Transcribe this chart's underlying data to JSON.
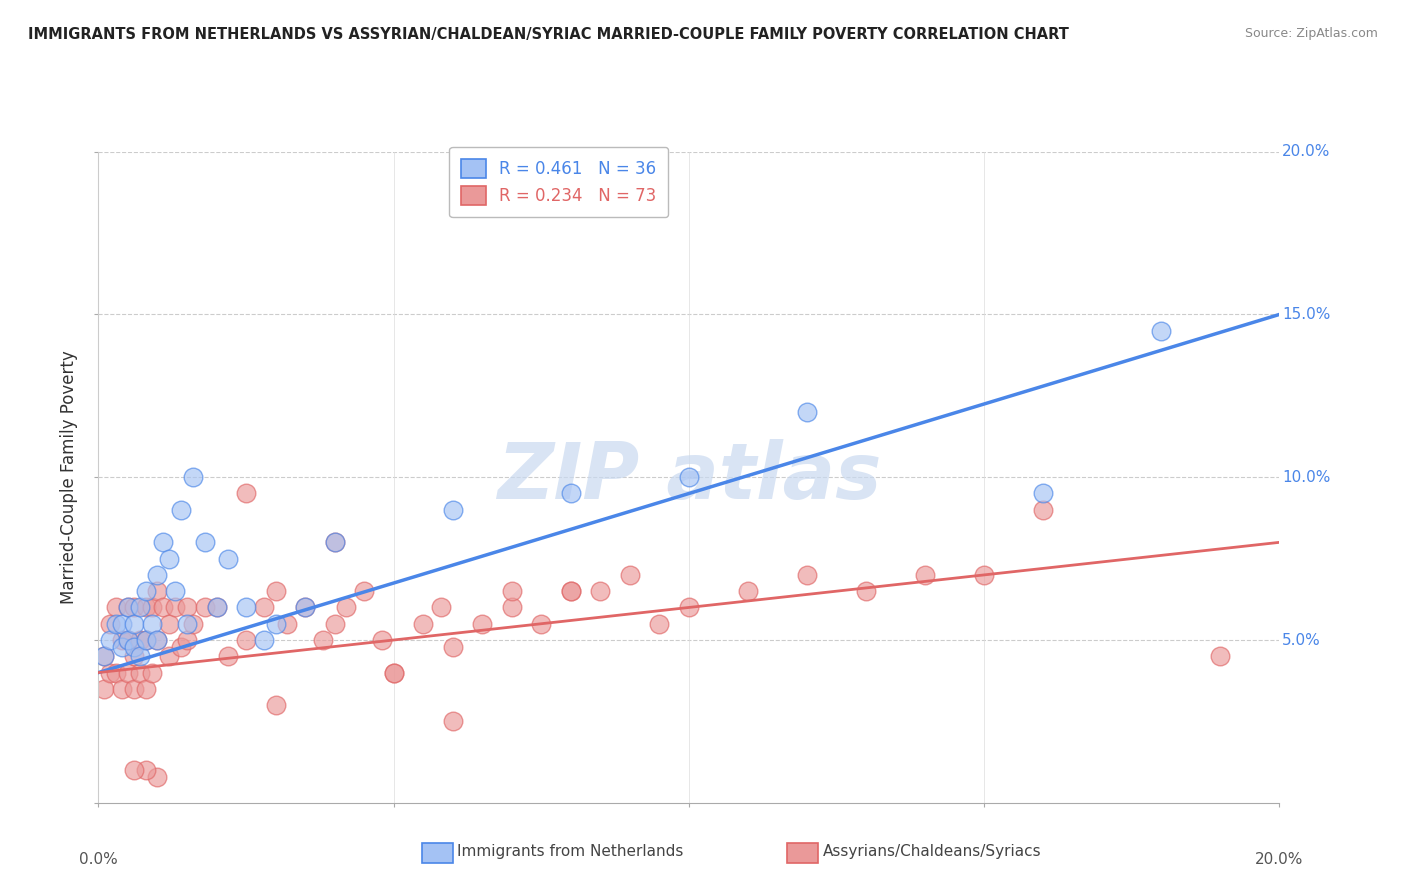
{
  "title": "IMMIGRANTS FROM NETHERLANDS VS ASSYRIAN/CHALDEAN/SYRIAC MARRIED-COUPLE FAMILY POVERTY CORRELATION CHART",
  "source": "Source: ZipAtlas.com",
  "ylabel": "Married-Couple Family Poverty",
  "xlim": [
    0.0,
    0.2
  ],
  "ylim": [
    0.0,
    0.2
  ],
  "blue_line_start_y": 0.04,
  "blue_line_end_y": 0.15,
  "pink_line_start_y": 0.04,
  "pink_line_end_y": 0.08,
  "legend_blue_label": "R = 0.461   N = 36",
  "legend_pink_label": "R = 0.234   N = 73",
  "legend_label_blue": "Immigrants from Netherlands",
  "legend_label_pink": "Assyrians/Chaldeans/Syriacs",
  "blue_fill_color": "#a4c2f4",
  "pink_fill_color": "#ea9999",
  "blue_edge_color": "#4a86e8",
  "pink_edge_color": "#e06666",
  "blue_line_color": "#4a86e8",
  "pink_line_color": "#e06666",
  "watermark_color": "#c9d9f0",
  "right_tick_color": "#4a86e8",
  "blue_points_x": [
    0.001,
    0.002,
    0.003,
    0.004,
    0.004,
    0.005,
    0.005,
    0.006,
    0.006,
    0.007,
    0.007,
    0.008,
    0.008,
    0.009,
    0.01,
    0.01,
    0.011,
    0.012,
    0.013,
    0.014,
    0.015,
    0.016,
    0.018,
    0.02,
    0.022,
    0.025,
    0.028,
    0.03,
    0.035,
    0.04,
    0.06,
    0.08,
    0.1,
    0.12,
    0.16,
    0.18
  ],
  "blue_points_y": [
    0.045,
    0.05,
    0.055,
    0.048,
    0.055,
    0.05,
    0.06,
    0.048,
    0.055,
    0.045,
    0.06,
    0.05,
    0.065,
    0.055,
    0.07,
    0.05,
    0.08,
    0.075,
    0.065,
    0.09,
    0.055,
    0.1,
    0.08,
    0.06,
    0.075,
    0.06,
    0.05,
    0.055,
    0.06,
    0.08,
    0.09,
    0.095,
    0.1,
    0.12,
    0.095,
    0.145
  ],
  "pink_points_x": [
    0.001,
    0.001,
    0.002,
    0.002,
    0.003,
    0.003,
    0.004,
    0.004,
    0.005,
    0.005,
    0.005,
    0.006,
    0.006,
    0.006,
    0.007,
    0.007,
    0.008,
    0.008,
    0.008,
    0.009,
    0.009,
    0.01,
    0.01,
    0.011,
    0.012,
    0.012,
    0.013,
    0.014,
    0.015,
    0.015,
    0.016,
    0.018,
    0.02,
    0.022,
    0.025,
    0.028,
    0.03,
    0.032,
    0.035,
    0.038,
    0.04,
    0.042,
    0.045,
    0.048,
    0.05,
    0.055,
    0.058,
    0.06,
    0.065,
    0.07,
    0.075,
    0.08,
    0.085,
    0.09,
    0.095,
    0.1,
    0.11,
    0.12,
    0.13,
    0.14,
    0.15,
    0.16,
    0.025,
    0.03,
    0.04,
    0.05,
    0.06,
    0.07,
    0.08,
    0.19,
    0.01,
    0.008,
    0.006
  ],
  "pink_points_y": [
    0.045,
    0.035,
    0.04,
    0.055,
    0.04,
    0.06,
    0.035,
    0.05,
    0.04,
    0.05,
    0.06,
    0.035,
    0.045,
    0.06,
    0.04,
    0.05,
    0.035,
    0.05,
    0.06,
    0.04,
    0.06,
    0.05,
    0.065,
    0.06,
    0.055,
    0.045,
    0.06,
    0.048,
    0.05,
    0.06,
    0.055,
    0.06,
    0.06,
    0.045,
    0.05,
    0.06,
    0.065,
    0.055,
    0.06,
    0.05,
    0.055,
    0.06,
    0.065,
    0.05,
    0.04,
    0.055,
    0.06,
    0.048,
    0.055,
    0.06,
    0.055,
    0.065,
    0.065,
    0.07,
    0.055,
    0.06,
    0.065,
    0.07,
    0.065,
    0.07,
    0.07,
    0.09,
    0.095,
    0.03,
    0.08,
    0.04,
    0.025,
    0.065,
    0.065,
    0.045,
    0.008,
    0.01,
    0.01
  ]
}
